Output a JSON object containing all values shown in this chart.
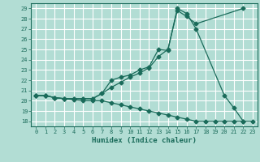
{
  "xlabel": "Humidex (Indice chaleur)",
  "xlim": [
    -0.5,
    23.5
  ],
  "ylim": [
    17.5,
    29.5
  ],
  "yticks": [
    18,
    19,
    20,
    21,
    22,
    23,
    24,
    25,
    26,
    27,
    28,
    29
  ],
  "xticks": [
    0,
    1,
    2,
    3,
    4,
    5,
    6,
    7,
    8,
    9,
    10,
    11,
    12,
    13,
    14,
    15,
    16,
    17,
    18,
    19,
    20,
    21,
    22,
    23
  ],
  "bg_color": "#b2ddd4",
  "grid_color": "#ffffff",
  "line_color": "#1a6b5a",
  "line1_x": [
    0,
    1,
    2,
    3,
    4,
    5,
    6,
    7,
    8,
    9,
    10,
    11,
    12,
    13,
    14,
    15,
    16,
    17,
    20,
    21,
    22
  ],
  "line1_y": [
    20.5,
    20.5,
    20.3,
    20.2,
    20.2,
    20.2,
    20.2,
    20.7,
    22.0,
    22.3,
    22.5,
    23.0,
    23.3,
    25.0,
    24.9,
    29.0,
    28.5,
    27.0,
    20.5,
    19.3,
    18.0
  ],
  "line2_x": [
    0,
    1,
    2,
    3,
    4,
    5,
    6,
    7,
    8,
    9,
    10,
    11,
    12,
    13,
    14,
    15,
    16,
    17,
    22
  ],
  "line2_y": [
    20.5,
    20.5,
    20.3,
    20.2,
    20.2,
    20.2,
    20.2,
    20.7,
    21.3,
    21.8,
    22.3,
    22.7,
    23.2,
    24.3,
    25.0,
    28.8,
    28.2,
    27.5,
    29.0
  ],
  "line3_x": [
    0,
    1,
    2,
    3,
    4,
    5,
    6,
    7,
    8,
    9,
    10,
    11,
    12,
    13,
    14,
    15,
    16,
    17,
    18,
    19,
    20,
    21,
    22,
    23
  ],
  "line3_y": [
    20.5,
    20.5,
    20.3,
    20.2,
    20.1,
    20.0,
    20.0,
    20.0,
    19.8,
    19.6,
    19.4,
    19.2,
    19.0,
    18.8,
    18.6,
    18.4,
    18.2,
    18.0,
    18.0,
    18.0,
    18.0,
    18.0,
    18.0,
    18.0
  ]
}
